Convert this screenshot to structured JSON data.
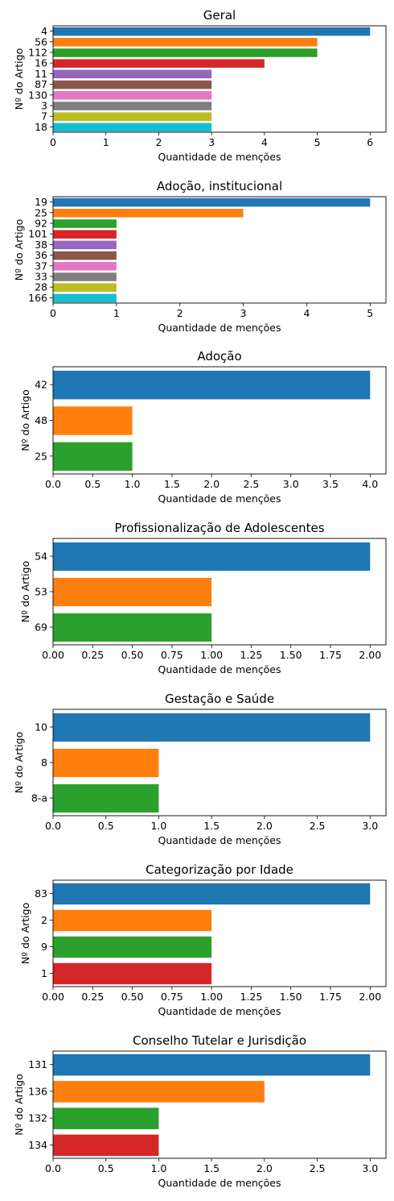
{
  "chart_data": [
    {
      "type": "bar",
      "orientation": "horizontal",
      "title": "Geral",
      "xlabel": "Quantidade de menções",
      "ylabel": "Nº do Artigo",
      "categories": [
        "4",
        "56",
        "112",
        "16",
        "11",
        "87",
        "130",
        "3",
        "7",
        "18"
      ],
      "values": [
        6,
        5,
        5,
        4,
        3,
        3,
        3,
        3,
        3,
        3
      ],
      "colors": [
        "#1f77b4",
        "#ff7f0e",
        "#2ca02c",
        "#d62728",
        "#9467bd",
        "#8c564b",
        "#e377c2",
        "#7f7f7f",
        "#bcbd22",
        "#17becf"
      ],
      "xlim": [
        0,
        6.3
      ],
      "xticks": [
        "0",
        "1",
        "2",
        "3",
        "4",
        "5",
        "6"
      ],
      "grid": false,
      "legend": "none"
    },
    {
      "type": "bar",
      "orientation": "horizontal",
      "title": "Adoção, institucional",
      "xlabel": "Quantidade de menções",
      "ylabel": "Nº do Artigo",
      "categories": [
        "19",
        "25",
        "92",
        "101",
        "38",
        "36",
        "37",
        "33",
        "28",
        "166"
      ],
      "values": [
        5,
        3,
        1,
        1,
        1,
        1,
        1,
        1,
        1,
        1
      ],
      "colors": [
        "#1f77b4",
        "#ff7f0e",
        "#2ca02c",
        "#d62728",
        "#9467bd",
        "#8c564b",
        "#e377c2",
        "#7f7f7f",
        "#bcbd22",
        "#17becf"
      ],
      "xlim": [
        0,
        5.25
      ],
      "xticks": [
        "0",
        "1",
        "2",
        "3",
        "4",
        "5"
      ],
      "grid": false,
      "legend": "none"
    },
    {
      "type": "bar",
      "orientation": "horizontal",
      "title": "Adoção",
      "xlabel": "Quantidade de menções",
      "ylabel": "Nº do Artigo",
      "categories": [
        "42",
        "48",
        "25"
      ],
      "values": [
        4,
        1,
        1
      ],
      "colors": [
        "#1f77b4",
        "#ff7f0e",
        "#2ca02c"
      ],
      "xlim": [
        0,
        4.2
      ],
      "xticks": [
        "0.0",
        "0.5",
        "1.0",
        "1.5",
        "2.0",
        "2.5",
        "3.0",
        "3.5",
        "4.0"
      ],
      "grid": false,
      "legend": "none"
    },
    {
      "type": "bar",
      "orientation": "horizontal",
      "title": "Profissionalização de Adolescentes",
      "xlabel": "Quantidade de menções",
      "ylabel": "Nº do Artigo",
      "categories": [
        "54",
        "53",
        "69"
      ],
      "values": [
        2,
        1,
        1
      ],
      "colors": [
        "#1f77b4",
        "#ff7f0e",
        "#2ca02c"
      ],
      "xlim": [
        0,
        2.1
      ],
      "xticks": [
        "0.00",
        "0.25",
        "0.50",
        "0.75",
        "1.00",
        "1.25",
        "1.50",
        "1.75",
        "2.00"
      ],
      "grid": false,
      "legend": "none"
    },
    {
      "type": "bar",
      "orientation": "horizontal",
      "title": "Gestação e Saúde",
      "xlabel": "Quantidade de menções",
      "ylabel": "Nº do Artigo",
      "categories": [
        "10",
        "8",
        "8-a"
      ],
      "values": [
        3,
        1,
        1
      ],
      "colors": [
        "#1f77b4",
        "#ff7f0e",
        "#2ca02c"
      ],
      "xlim": [
        0,
        3.15
      ],
      "xticks": [
        "0.0",
        "0.5",
        "1.0",
        "1.5",
        "2.0",
        "2.5",
        "3.0"
      ],
      "grid": false,
      "legend": "none"
    },
    {
      "type": "bar",
      "orientation": "horizontal",
      "title": "Categorização por Idade",
      "xlabel": "Quantidade de menções",
      "ylabel": "Nº do Artigo",
      "categories": [
        "83",
        "2",
        "9",
        "1"
      ],
      "values": [
        2,
        1,
        1,
        1
      ],
      "colors": [
        "#1f77b4",
        "#ff7f0e",
        "#2ca02c",
        "#d62728"
      ],
      "xlim": [
        0,
        2.1
      ],
      "xticks": [
        "0.00",
        "0.25",
        "0.50",
        "0.75",
        "1.00",
        "1.25",
        "1.50",
        "1.75",
        "2.00"
      ],
      "grid": false,
      "legend": "none"
    },
    {
      "type": "bar",
      "orientation": "horizontal",
      "title": "Conselho Tutelar e Jurisdição",
      "xlabel": "Quantidade de menções",
      "ylabel": "Nº do Artigo",
      "categories": [
        "131",
        "136",
        "132",
        "134"
      ],
      "values": [
        3,
        2,
        1,
        1
      ],
      "colors": [
        "#1f77b4",
        "#ff7f0e",
        "#2ca02c",
        "#d62728"
      ],
      "xlim": [
        0,
        3.15
      ],
      "xticks": [
        "0.0",
        "0.5",
        "1.0",
        "1.5",
        "2.0",
        "2.5",
        "3.0"
      ],
      "grid": false,
      "legend": "none"
    }
  ]
}
